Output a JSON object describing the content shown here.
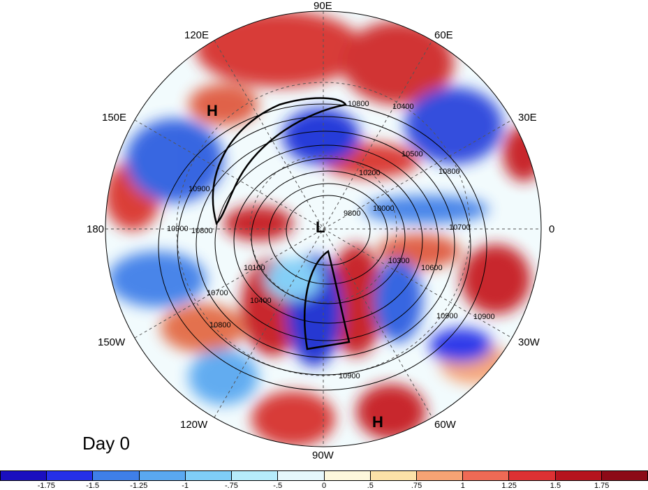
{
  "map": {
    "projection": "north polar stereographic",
    "panel_label": "Day 0",
    "longitude_labels": [
      {
        "text": "90E",
        "position": "top"
      },
      {
        "text": "60E",
        "position": "upper-right"
      },
      {
        "text": "30E",
        "position": "right-upper"
      },
      {
        "text": "0",
        "position": "right"
      },
      {
        "text": "30W",
        "position": "right-lower"
      },
      {
        "text": "60W",
        "position": "lower-right"
      },
      {
        "text": "90W",
        "position": "bottom"
      },
      {
        "text": "120W",
        "position": "lower-left"
      },
      {
        "text": "150W",
        "position": "left-lower"
      },
      {
        "text": "180",
        "position": "left"
      },
      {
        "text": "150E",
        "position": "left-upper"
      },
      {
        "text": "120E",
        "position": "upper-left"
      }
    ],
    "pressure_centers": {
      "low": "L",
      "highs": [
        "H",
        "H"
      ]
    },
    "contour_labels": [
      "10800",
      "10400",
      "10500",
      "10800",
      "10200",
      "10900",
      "9800",
      "10000",
      "10700",
      "10600",
      "10300",
      "10900",
      "10800",
      "10900",
      "10100",
      "10400",
      "10700",
      "10900",
      "10800",
      "10900"
    ],
    "shading_colormap": "blue-white-red diverging",
    "grid": true
  },
  "colorbar": {
    "tick_labels": [
      "-1.75",
      "-1.5",
      "-1.25",
      "-1",
      "-.75",
      "-.5",
      "0",
      ".5",
      ".75",
      "1",
      "1.25",
      "1.5",
      "1.75"
    ],
    "colors": [
      "#1a0fbf",
      "#2530e8",
      "#3f7fe8",
      "#5aa8f0",
      "#7fcdf7",
      "#b6ecfb",
      "#e6f8fc",
      "#fdf8dc",
      "#fce2a8",
      "#f6a374",
      "#ee6a55",
      "#dd3133",
      "#b5141e",
      "#8c0a17"
    ]
  }
}
